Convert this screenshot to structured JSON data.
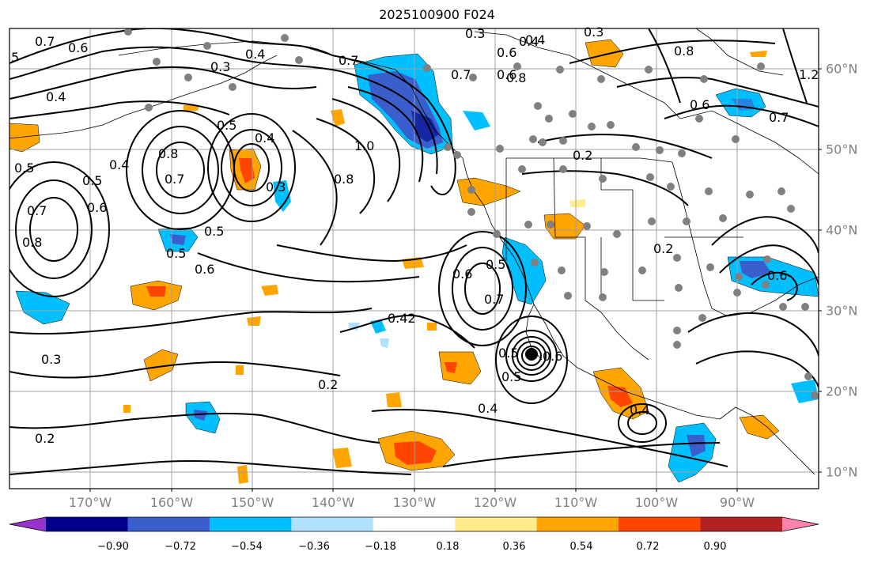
{
  "title": "2025100900 F024",
  "lon_labels": [
    "170°W",
    "160°W",
    "150°W",
    "140°W",
    "130°W",
    "120°W",
    "110°W",
    "100°W",
    "90°W"
  ],
  "lat_labels": [
    "60°N",
    "50°N",
    "40°N",
    "30°N",
    "20°N",
    "10°N"
  ],
  "colorbar": {
    "ticks": [
      "−0.90",
      "−0.72",
      "−0.54",
      "−0.36",
      "−0.18",
      "0.18",
      "0.36",
      "0.54",
      "0.72",
      "0.90"
    ],
    "colors": [
      "#9932cc",
      "#00008b",
      "#3a5fcd",
      "#00bfff",
      "#b0e2ff",
      "#ffffff",
      "#ffec8b",
      "#ffa500",
      "#ff4500",
      "#b22222",
      "#ff83aa"
    ]
  },
  "contour_labels": [
    "0.7",
    "0.6",
    "5",
    "0.3",
    "0.4",
    "0.4",
    "0.7",
    "0.3",
    "0.4",
    "0.6",
    "0.3",
    "0.6",
    "0.7",
    "0.8",
    "0.8",
    "1.2",
    "0.4",
    "0.6",
    "0.7",
    "0.5",
    "0.4",
    "0.8",
    "1.0",
    "0.8",
    "0.5",
    "0.7",
    "0.5",
    "0.6",
    "0.3",
    "0.4",
    "0.2",
    "0.7",
    "0.8",
    "0.5",
    "0.6",
    "0.5",
    "0.6",
    "0.2",
    "0.6",
    "0.7",
    "0.5",
    "0.42",
    "0.3",
    "0.2",
    "0.5",
    "0.5",
    "0.4",
    "0.4",
    "0.2",
    "0.6"
  ],
  "colors": {
    "grid": "#a0a0a0",
    "coast": "#000000",
    "station": "#808080"
  }
}
